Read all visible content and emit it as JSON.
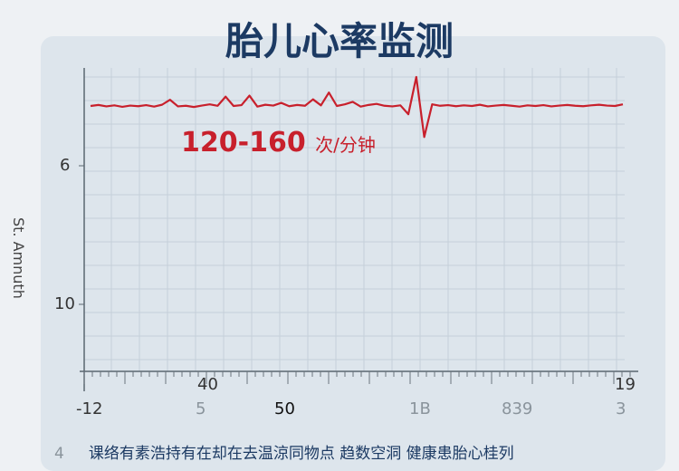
{
  "title": "胎儿心率监测",
  "rate_label": {
    "value": "120-160",
    "unit": "次/分钟"
  },
  "footer": {
    "prefix": "4",
    "text": "课络有素浩持有在却在去温涼同物点 趋数空洞 健康患胎心桂列"
  },
  "colors": {
    "line": "#c8202c",
    "title": "#1c3a63",
    "card": "#dde5ec",
    "grid": "#c5d0da"
  },
  "chart_data": {
    "type": "line",
    "title": "胎儿心率监测",
    "ylabel": "St. Amnuth",
    "yticks": [
      "6",
      "10"
    ],
    "xticks_row1": [
      "40",
      "19"
    ],
    "xticks_row2": [
      "-12",
      "5",
      "50",
      "1B",
      "839",
      "3"
    ],
    "grid": true,
    "ylim": [
      100,
      180
    ],
    "values": [
      140,
      140.5,
      139.8,
      140.3,
      139.6,
      140.2,
      139.9,
      140.4,
      139.7,
      140.6,
      143,
      139.8,
      140.1,
      139.5,
      140.2,
      140.8,
      140.1,
      144.5,
      140.0,
      140.4,
      145,
      139.7,
      140.6,
      140.2,
      141.5,
      139.9,
      140.5,
      140.1,
      143.2,
      140.3,
      146.5,
      140.0,
      140.8,
      142,
      139.7,
      140.5,
      141,
      140.1,
      139.8,
      140.3,
      136,
      154,
      125,
      140.8,
      140.1,
      140.4,
      139.9,
      140.3,
      140.0,
      140.6,
      139.8,
      140.2,
      140.5,
      140.1,
      139.7,
      140.3,
      140.0,
      140.4,
      139.8,
      140.2,
      140.5,
      140.1,
      139.9,
      140.3,
      140.6,
      140.2,
      140.0,
      140.8
    ]
  }
}
